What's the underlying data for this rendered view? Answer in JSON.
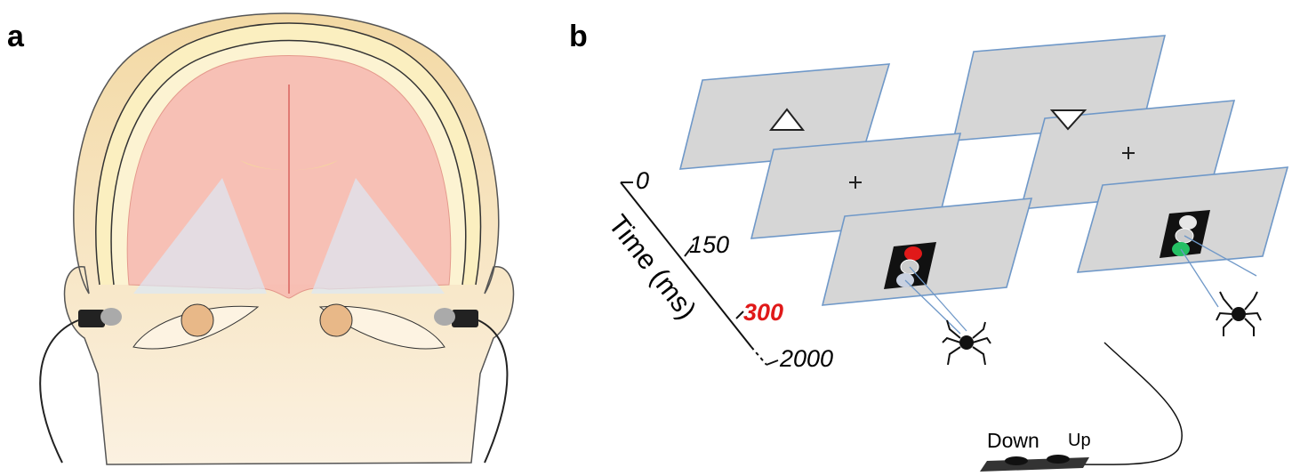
{
  "panels": {
    "a": {
      "label": "a"
    },
    "b": {
      "label": "b"
    }
  },
  "timeline": {
    "title": "Time (ms)",
    "ticks": [
      "0",
      "150",
      "300",
      "2000"
    ]
  },
  "response_box": {
    "buttons": [
      "Down",
      "Up"
    ]
  }
}
